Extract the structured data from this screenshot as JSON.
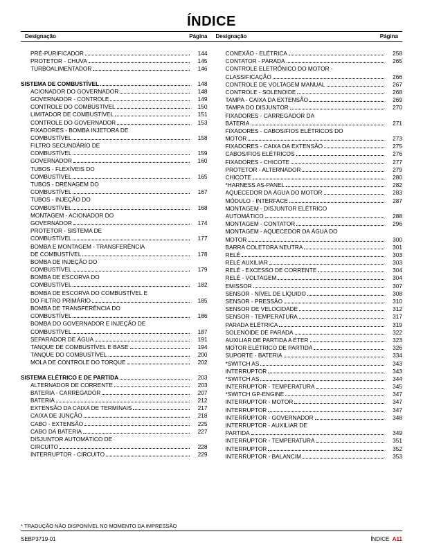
{
  "title": "ÍNDICE",
  "header_label": "Designação",
  "header_page": "Página",
  "footnote": "* TRADUÇÃO NÃO DISPONÍVEL NO MOMENTO DA IMPRESSÃO",
  "footer_left": "SEBP3719-01",
  "footer_right_label": "ÍNDICE",
  "footer_right_page": "A11",
  "left_col": [
    {
      "type": "blank"
    },
    {
      "label": "PRÉ-PURIFICADOR",
      "page": "144",
      "indent": 1
    },
    {
      "label": "PROTETOR - CHUVA",
      "page": "145",
      "indent": 1
    },
    {
      "label": "TURBOALIMENTADOR",
      "page": "146",
      "indent": 1
    },
    {
      "type": "blank"
    },
    {
      "label": "SISTEMA DE COMBUSTÍVEL",
      "page": "148",
      "bold": true
    },
    {
      "label": "ACIONADOR DO GOVERNADOR",
      "page": "148",
      "indent": 1
    },
    {
      "label": "GOVERNADOR - CONTROLE",
      "page": "149",
      "indent": 1
    },
    {
      "label": "CONTROLE DO COMBUSTÍVEL",
      "page": "150",
      "indent": 1
    },
    {
      "label": "LIMITADOR DE COMBUSTÍVEL",
      "page": "151",
      "indent": 1
    },
    {
      "label": "CONTROLE DO GOVERNADOR",
      "page": "153",
      "indent": 1
    },
    {
      "label": "FIXADORES - BOMBA INJETORA DE",
      "indent": 1,
      "cont": true
    },
    {
      "label": "COMBUSTÍVEL",
      "page": "158",
      "indent": 1
    },
    {
      "label": "FILTRO SECUNDÁRIO DE",
      "indent": 1,
      "cont": true
    },
    {
      "label": "COMBUSTÍVEL",
      "page": "159",
      "indent": 1
    },
    {
      "label": "GOVERNADOR",
      "page": "160",
      "indent": 1
    },
    {
      "label": "TUBOS - FLEXÍVEIS DO",
      "indent": 1,
      "cont": true
    },
    {
      "label": "COMBUSTÍVEL",
      "page": "165",
      "indent": 1
    },
    {
      "label": "TUBOS - DRENAGEM DO",
      "indent": 1,
      "cont": true
    },
    {
      "label": "COMBUSTÍVEL",
      "page": "167",
      "indent": 1
    },
    {
      "label": "TUBOS - INJEÇÃO DO",
      "indent": 1,
      "cont": true
    },
    {
      "label": "COMBUSTÍVEL",
      "page": "168",
      "indent": 1
    },
    {
      "label": "MONTAGEM - ACIONADOR DO",
      "indent": 1,
      "cont": true
    },
    {
      "label": "GOVERNADOR",
      "page": "174",
      "indent": 1
    },
    {
      "label": "PROTETOR - SISTEMA DE",
      "indent": 1,
      "cont": true
    },
    {
      "label": "COMBUSTÍVEL",
      "page": "177",
      "indent": 1
    },
    {
      "label": "BOMBA E MONTAGEM - TRANSFERÊNCIA",
      "indent": 1,
      "cont": true
    },
    {
      "label": "DE COMBUSTÍVEL",
      "page": "178",
      "indent": 1
    },
    {
      "label": "BOMBA DE INJEÇÃO DO",
      "indent": 1,
      "cont": true
    },
    {
      "label": "COMBUSTÍVEL",
      "page": "179",
      "indent": 1
    },
    {
      "label": "BOMBA DE ESCORVA DO",
      "indent": 1,
      "cont": true
    },
    {
      "label": "COMBUSTÍVEL",
      "page": "182",
      "indent": 1
    },
    {
      "label": "BOMBA DE ESCORVA DO COMBUSTÍVEL E",
      "indent": 1,
      "cont": true
    },
    {
      "label": "DO FILTRO PRIMÁRIO",
      "page": "185",
      "indent": 1
    },
    {
      "label": "BOMBA DE TRANSFERÊNCIA DO",
      "indent": 1,
      "cont": true
    },
    {
      "label": "COMBUSTÍVEL",
      "page": "186",
      "indent": 1
    },
    {
      "label": "BOMBA DO GOVERNADOR E INJEÇÃO DE",
      "indent": 1,
      "cont": true
    },
    {
      "label": "COMBUSTÍVEL",
      "page": "187",
      "indent": 1
    },
    {
      "label": "SEPARADOR DE ÁGUA",
      "page": "191",
      "indent": 1
    },
    {
      "label": "TANQUE DE COMBUSTÍVEL E BASE",
      "page": "194",
      "indent": 1
    },
    {
      "label": "TANQUE DO COMBUSTÍVEL",
      "page": "200",
      "indent": 1
    },
    {
      "label": "MOLA DE CONTROLE DO TORQUE",
      "page": "202",
      "indent": 1
    },
    {
      "type": "blank"
    },
    {
      "label": "SISTEMA ELÉTRICO E DE PARTIDA",
      "page": "203",
      "bold": true
    },
    {
      "label": "ALTERNADOR DE CORRENTE",
      "page": "203",
      "indent": 1
    },
    {
      "label": "BATERIA - CARREGADOR",
      "page": "207",
      "indent": 1
    },
    {
      "label": "BATERIA",
      "page": "212",
      "indent": 1
    },
    {
      "label": "EXTENSÃO DA CAIXA DE TERMINAIS",
      "page": "217",
      "indent": 1
    },
    {
      "label": "CAIXA DE JUNÇÃO",
      "page": "218",
      "indent": 1
    },
    {
      "label": "CABO - EXTENSÃO",
      "page": "225",
      "indent": 1
    },
    {
      "label": "CABO DA BATERIA",
      "page": "227",
      "indent": 1
    },
    {
      "label": "DISJUNTOR AUTOMÁTICO DE",
      "indent": 1,
      "cont": true
    },
    {
      "label": "CIRCUITO",
      "page": "228",
      "indent": 1
    },
    {
      "label": "INTERRUPTOR - CIRCUITO",
      "page": "229",
      "indent": 1
    }
  ],
  "right_col": [
    {
      "type": "blank"
    },
    {
      "label": "CONEXÃO - ELÉTRICA",
      "page": "258",
      "indent": 1
    },
    {
      "label": "CONTATOR - PARADA",
      "page": "265",
      "indent": 1
    },
    {
      "label": "CONTROLE ELETRÔNICO DO MOTOR -",
      "indent": 1,
      "cont": true
    },
    {
      "label": "CLASSIFICAÇÃO",
      "page": "266",
      "indent": 1
    },
    {
      "label": "CONTROLE DE VOLTAGEM MANUAL",
      "page": "267",
      "indent": 1
    },
    {
      "label": "CONTROLE - SOLENOIDE",
      "page": "268",
      "indent": 1
    },
    {
      "label": "TAMPA - CAIXA DA EXTENSÃO",
      "page": "269",
      "indent": 1
    },
    {
      "label": "TAMPA DO DISJUNTOR",
      "page": "270",
      "indent": 1
    },
    {
      "label": "FIXADORES - CARREGADOR DA",
      "indent": 1,
      "cont": true
    },
    {
      "label": "BATERIA",
      "page": "271",
      "indent": 1
    },
    {
      "label": "FIXADORES - CABOS/FIOS ELÉTRICOS DO",
      "indent": 1,
      "cont": true
    },
    {
      "label": "MOTOR",
      "page": "273",
      "indent": 1
    },
    {
      "label": "FIXADORES - CAIXA DA EXTENSÃO",
      "page": "275",
      "indent": 1
    },
    {
      "label": "CABOS/FIOS ELÉTRICOS",
      "page": "276",
      "indent": 1
    },
    {
      "label": "FIXADORES - CHICOTE",
      "page": "277",
      "indent": 1
    },
    {
      "label": "PROTETOR - ALTERNADOR",
      "page": "279",
      "indent": 1
    },
    {
      "label": "CHICOTE",
      "page": "280",
      "indent": 1
    },
    {
      "label": "*HARNESS AS-PANEL",
      "page": "282",
      "indent": 1
    },
    {
      "label": "AQUECEDOR DA ÁGUA DO MOTOR",
      "page": "283",
      "indent": 1
    },
    {
      "label": "MÓDULO - INTERFACE",
      "page": "287",
      "indent": 1
    },
    {
      "label": "MONTAGEM - DISJUNTOR ELÉTRICO",
      "indent": 1,
      "cont": true
    },
    {
      "label": "AUTOMÁTICO",
      "page": "288",
      "indent": 1
    },
    {
      "label": "MONTAGEM - CONTATOR",
      "page": "296",
      "indent": 1
    },
    {
      "label": "MONTAGEM - AQUECEDOR DA ÁGUA DO",
      "indent": 1,
      "cont": true
    },
    {
      "label": "MOTOR",
      "page": "300",
      "indent": 1
    },
    {
      "label": "BARRA COLETORA NEUTRA",
      "page": "301",
      "indent": 1
    },
    {
      "label": "RELÉ",
      "page": "303",
      "indent": 1
    },
    {
      "label": "RELÉ AUXILIAR",
      "page": "303",
      "indent": 1
    },
    {
      "label": "RELÉ - EXCESSO DE CORRENTE",
      "page": "304",
      "indent": 1
    },
    {
      "label": "RELÉ - VOLTAGEM",
      "page": "304",
      "indent": 1
    },
    {
      "label": "EMISSOR",
      "page": "307",
      "indent": 1
    },
    {
      "label": "SENSOR - NÍVEL DE LÍQUIDO",
      "page": "308",
      "indent": 1
    },
    {
      "label": "SENSOR - PRESSÃO",
      "page": "310",
      "indent": 1
    },
    {
      "label": "SENSOR DE VELOCIDADE",
      "page": "312",
      "indent": 1
    },
    {
      "label": "SENSOR - TEMPERATURA",
      "page": "317",
      "indent": 1
    },
    {
      "label": "PARADA ELÉTRICA",
      "page": "319",
      "indent": 1
    },
    {
      "label": "SOLENÓIDE DE PARADA",
      "page": "322",
      "indent": 1
    },
    {
      "label": "AUXILIAR DE PARTIDA A ÉTER",
      "page": "323",
      "indent": 1
    },
    {
      "label": "MOTOR ELÉTRICO DE PARTIDA",
      "page": "326",
      "indent": 1
    },
    {
      "label": "SUPORTE - BATERIA",
      "page": "334",
      "indent": 1
    },
    {
      "label": "*SWITCH AS",
      "page": "343",
      "indent": 1
    },
    {
      "label": "INTERRUPTOR",
      "page": "343",
      "indent": 1
    },
    {
      "label": "*SWITCH AS",
      "page": "344",
      "indent": 1
    },
    {
      "label": "INTERRUPTOR - TEMPERATURA",
      "page": "345",
      "indent": 1
    },
    {
      "label": "*SWITCH GP-ENGINE",
      "page": "347",
      "indent": 1
    },
    {
      "label": "INTERRUPTOR - MOTOR",
      "page": "347",
      "indent": 1
    },
    {
      "label": "INTERRUPTOR",
      "page": "347",
      "indent": 1
    },
    {
      "label": "INTERRUPTOR - GOVERNADOR",
      "page": "348",
      "indent": 1
    },
    {
      "label": "INTERRUPTOR - AUXILIAR DE",
      "indent": 1,
      "cont": true
    },
    {
      "label": "PARTIDA",
      "page": "349",
      "indent": 1
    },
    {
      "label": "INTERRUPTOR - TEMPERATURA",
      "page": "351",
      "indent": 1
    },
    {
      "label": "INTERRUPTOR",
      "page": "352",
      "indent": 1
    },
    {
      "label": "INTERRUPTOR - BALANCIM",
      "page": "353",
      "indent": 1
    }
  ]
}
